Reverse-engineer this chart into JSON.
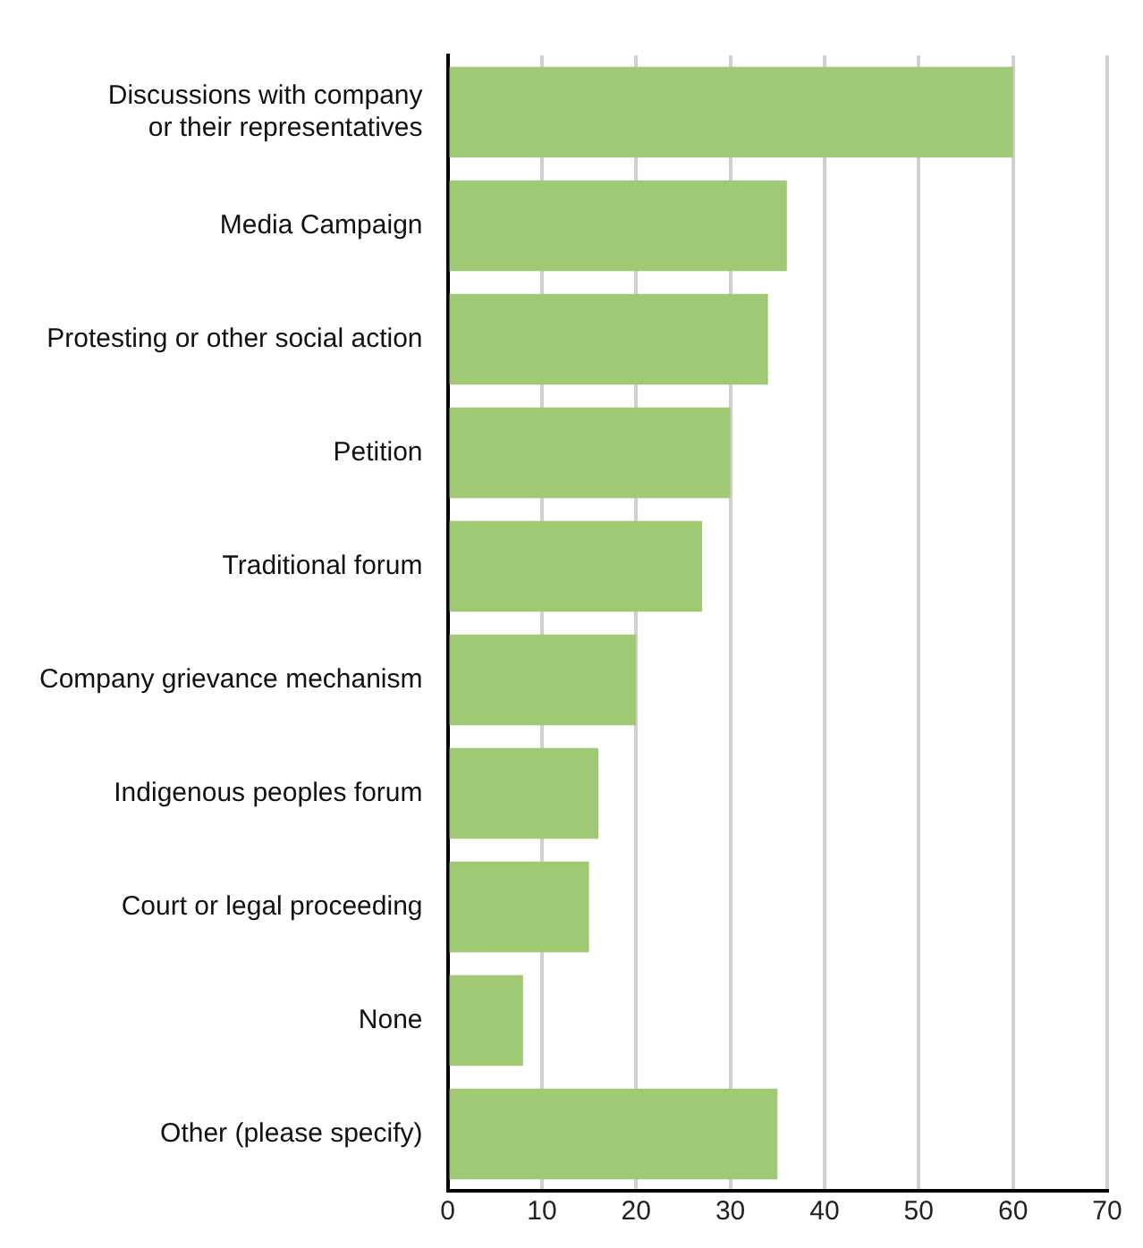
{
  "chart_data": {
    "type": "bar",
    "orientation": "horizontal",
    "categories": [
      "Discussions with company or their representatives",
      "Media Campaign",
      "Protesting or other social action",
      "Petition",
      "Traditional forum",
      "Company grievance mechanism",
      "Indigenous peoples forum",
      "Court or legal proceeding",
      "None",
      "Other (please specify)"
    ],
    "values": [
      60,
      36,
      34,
      30,
      27,
      20,
      16,
      15,
      8,
      35
    ],
    "color": "#9fc974",
    "xlim": [
      0,
      70
    ],
    "xticks": [
      0,
      10,
      20,
      30,
      40,
      50,
      60,
      70
    ],
    "grid": "x"
  }
}
